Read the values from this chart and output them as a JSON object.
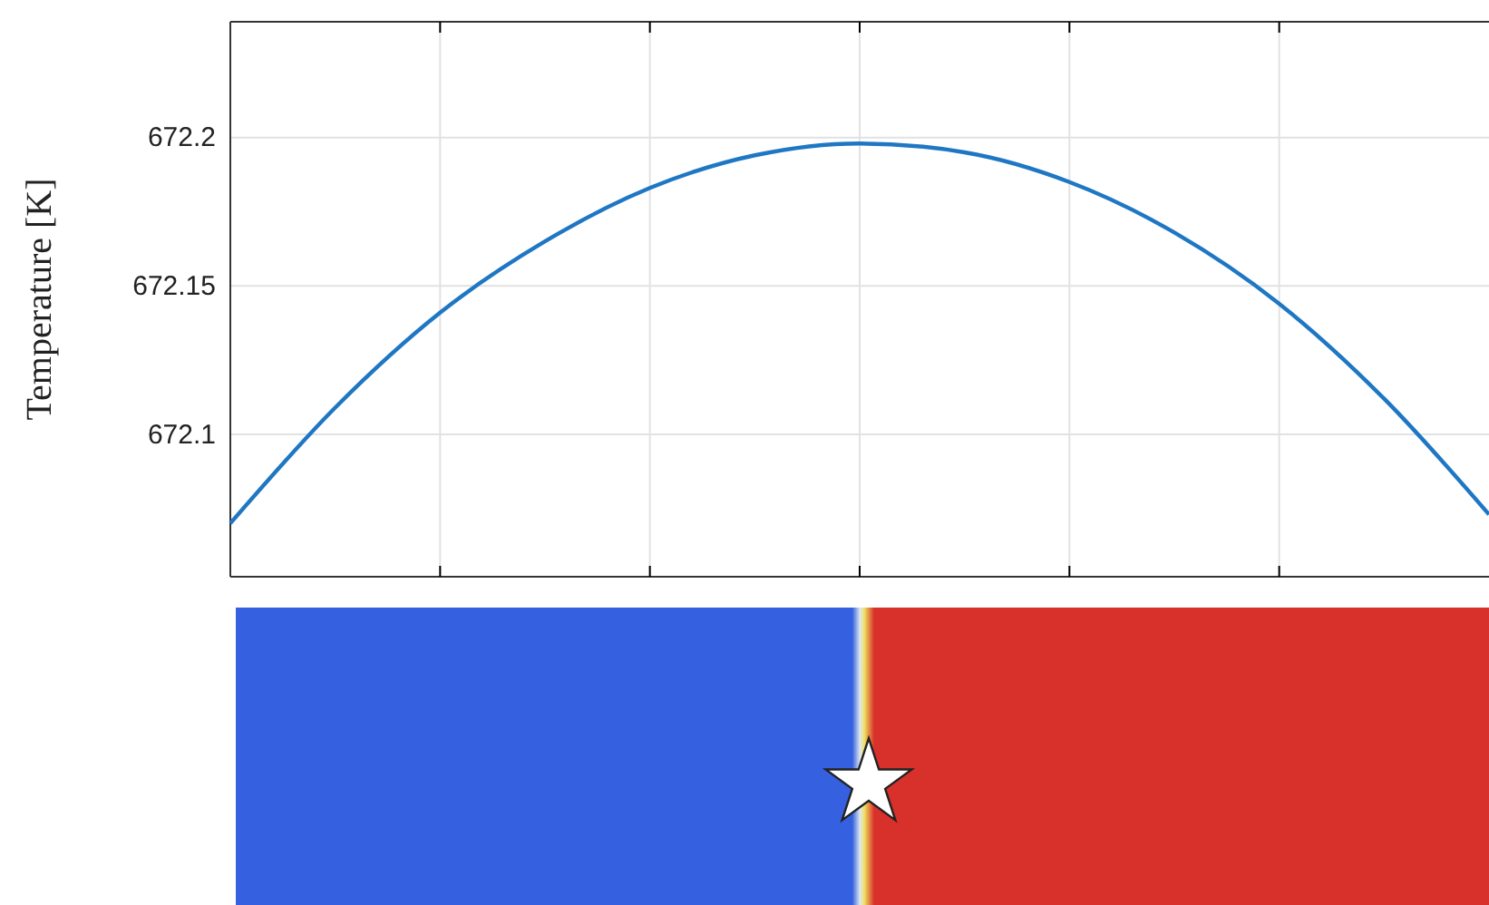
{
  "chart_data": {
    "type": "line",
    "ylabel": "Temperature [K]",
    "categories": [
      null,
      null,
      null,
      null,
      null,
      null,
      null,
      null,
      null,
      null,
      null,
      null,
      null
    ],
    "series": [
      {
        "color": "#1f77c4",
        "values": [
          672.07,
          672.109,
          672.141,
          672.165,
          672.183,
          672.194,
          672.198,
          672.195,
          672.185,
          672.168,
          672.144,
          672.112,
          672.073
        ]
      }
    ],
    "ylim": [
      672.052,
      672.239
    ],
    "yticks": [
      672.1,
      672.15,
      672.2
    ],
    "grid": true,
    "tick_labels": "y",
    "marker": "none",
    "line_style": "solid"
  }
}
